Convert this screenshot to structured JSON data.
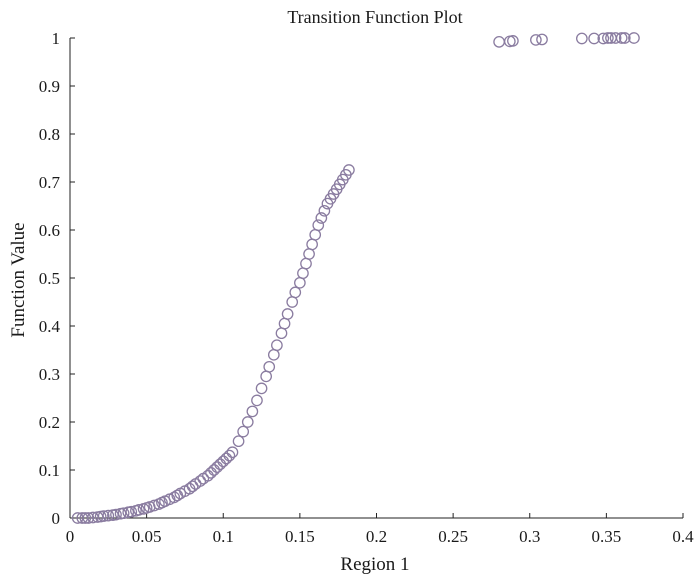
{
  "chart_data": {
    "type": "scatter",
    "title": "Transition Function Plot",
    "xlabel": "Region 1",
    "ylabel": "Function Value",
    "xlim": [
      0,
      0.4
    ],
    "ylim": [
      0,
      1
    ],
    "xticks": [
      0,
      0.05,
      0.1,
      0.15,
      0.2,
      0.25,
      0.3,
      0.35,
      0.4
    ],
    "xtick_labels": [
      "0",
      "0.05",
      "0.1",
      "0.15",
      "0.2",
      "0.25",
      "0.3",
      "0.35",
      "0.4"
    ],
    "yticks": [
      0,
      0.1,
      0.2,
      0.3,
      0.4,
      0.5,
      0.6,
      0.7,
      0.8,
      0.9,
      1
    ],
    "ytick_labels": [
      "0",
      "0.1",
      "0.2",
      "0.3",
      "0.4",
      "0.5",
      "0.6",
      "0.7",
      "0.8",
      "0.9",
      "1"
    ],
    "grid": false,
    "legend": "none",
    "marker": "open-circle",
    "marker_color": "#8a7ca0",
    "series": [
      {
        "x": [
          0.005,
          0.008,
          0.01,
          0.012,
          0.015,
          0.018,
          0.02,
          0.022,
          0.025,
          0.028,
          0.03,
          0.033,
          0.035,
          0.038,
          0.04,
          0.043,
          0.045,
          0.048,
          0.05,
          0.052,
          0.055,
          0.058,
          0.06,
          0.062,
          0.065,
          0.068,
          0.07,
          0.072,
          0.075,
          0.078,
          0.08,
          0.082,
          0.085,
          0.087,
          0.09,
          0.092,
          0.094,
          0.096,
          0.098,
          0.1,
          0.102,
          0.104,
          0.106,
          0.11,
          0.113,
          0.116,
          0.119,
          0.122,
          0.125,
          0.128,
          0.13,
          0.133,
          0.135,
          0.138,
          0.14,
          0.142,
          0.145,
          0.147,
          0.15,
          0.152,
          0.154,
          0.156,
          0.158,
          0.16,
          0.162,
          0.164,
          0.166,
          0.168,
          0.17,
          0.172,
          0.174,
          0.176,
          0.178,
          0.18,
          0.182,
          0.28,
          0.287,
          0.289,
          0.304,
          0.308,
          0.334,
          0.342,
          0.348,
          0.351,
          0.353,
          0.356,
          0.36,
          0.362,
          0.368
        ],
        "y": [
          0.0,
          0.0,
          0.0,
          0.0,
          0.001,
          0.002,
          0.003,
          0.004,
          0.005,
          0.006,
          0.007,
          0.009,
          0.01,
          0.012,
          0.013,
          0.015,
          0.017,
          0.019,
          0.021,
          0.023,
          0.026,
          0.029,
          0.032,
          0.035,
          0.039,
          0.043,
          0.047,
          0.051,
          0.056,
          0.061,
          0.066,
          0.071,
          0.077,
          0.082,
          0.088,
          0.094,
          0.1,
          0.106,
          0.112,
          0.118,
          0.124,
          0.13,
          0.137,
          0.16,
          0.18,
          0.2,
          0.222,
          0.245,
          0.27,
          0.295,
          0.315,
          0.34,
          0.36,
          0.385,
          0.405,
          0.425,
          0.45,
          0.47,
          0.49,
          0.51,
          0.53,
          0.55,
          0.57,
          0.59,
          0.61,
          0.625,
          0.64,
          0.655,
          0.665,
          0.675,
          0.685,
          0.695,
          0.705,
          0.715,
          0.725,
          0.992,
          0.993,
          0.994,
          0.996,
          0.997,
          0.999,
          0.999,
          0.999,
          1.0,
          1.0,
          1.0,
          1.0,
          1.0,
          1.0
        ]
      }
    ]
  }
}
